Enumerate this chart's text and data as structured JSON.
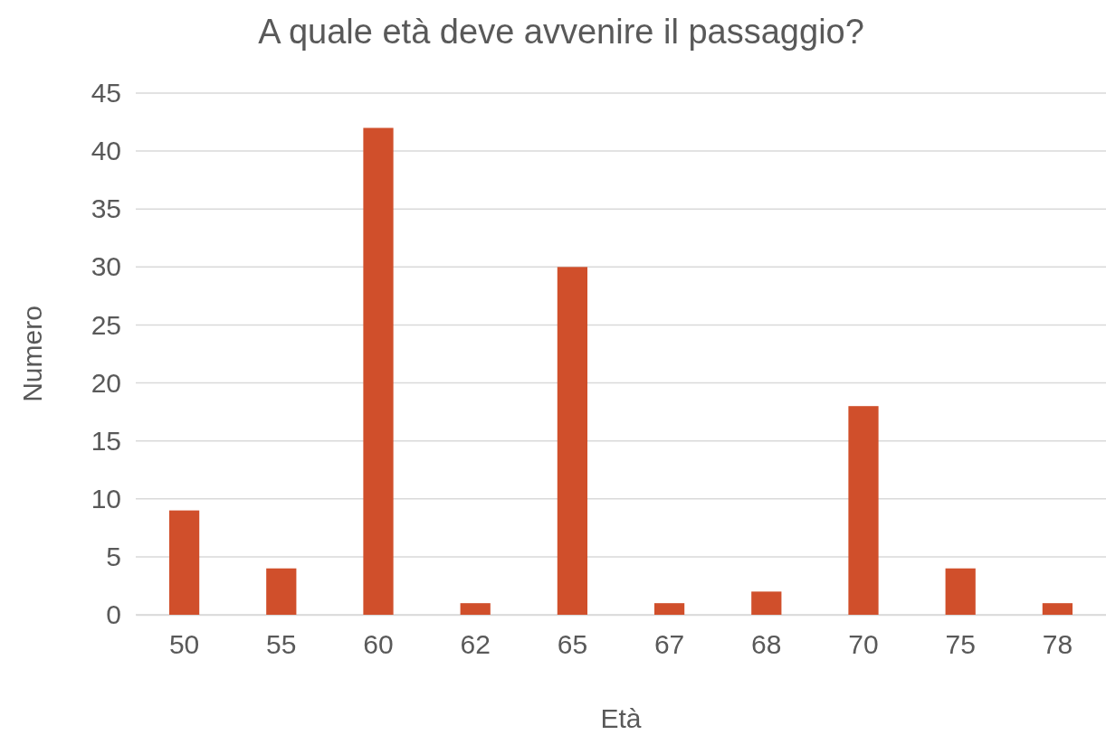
{
  "chart_data": {
    "type": "bar",
    "title": "A quale età deve avvenire il passaggio?",
    "xlabel": "Età",
    "ylabel": "Numero",
    "categories": [
      "50",
      "55",
      "60",
      "62",
      "65",
      "67",
      "68",
      "70",
      "75",
      "78"
    ],
    "values": [
      9,
      4,
      42,
      1,
      30,
      1,
      2,
      18,
      4,
      1
    ],
    "color": "#d04f2b",
    "ylim": [
      0,
      45
    ],
    "yticks": [
      0,
      5,
      10,
      15,
      20,
      25,
      30,
      35,
      40,
      45
    ],
    "grid": "y"
  }
}
